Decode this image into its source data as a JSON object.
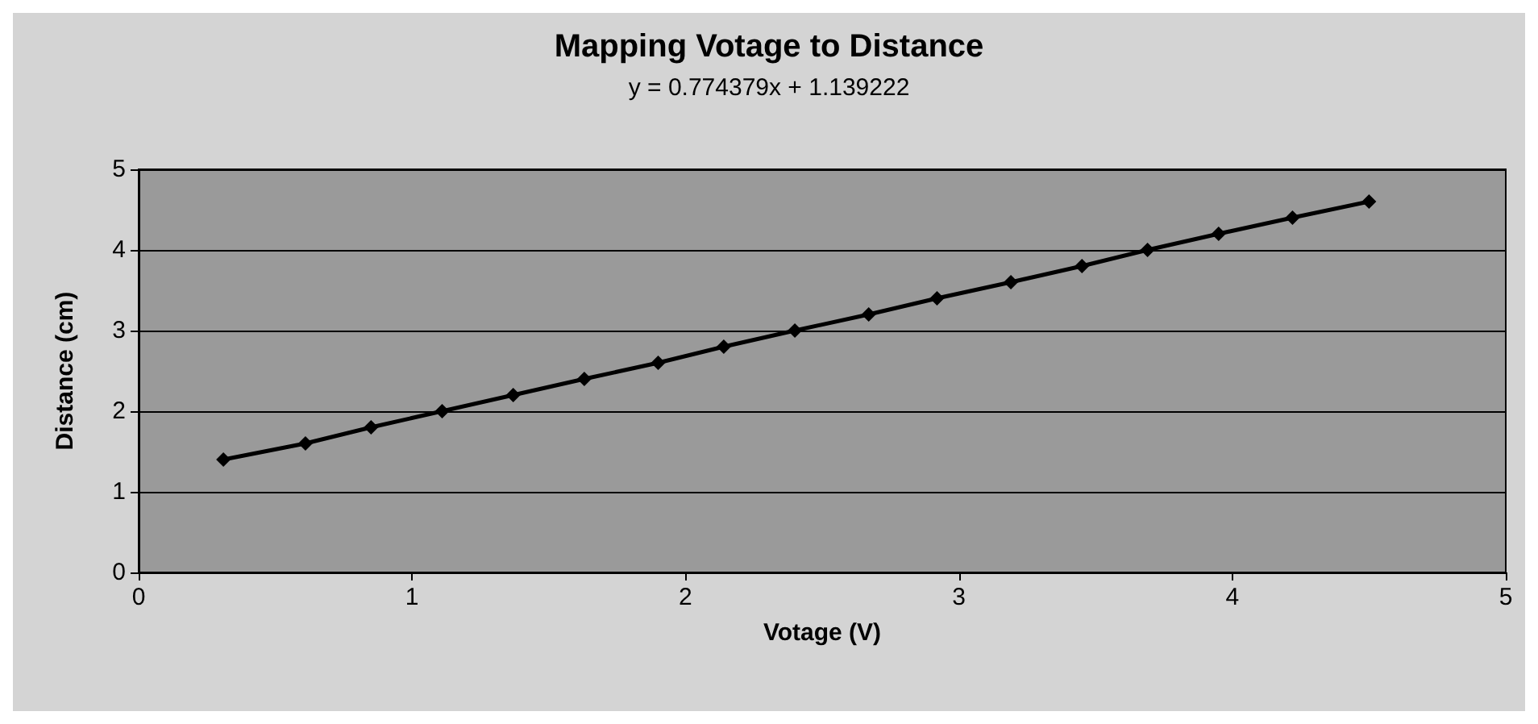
{
  "chart_data": {
    "type": "line",
    "title": "Mapping Votage to Distance",
    "subtitle": "y = 0.774379x + 1.139222",
    "xlabel": "Votage (V)",
    "ylabel": "Distance (cm)",
    "x": [
      0.31,
      0.61,
      0.85,
      1.11,
      1.37,
      1.63,
      1.9,
      2.14,
      2.4,
      2.67,
      2.92,
      3.19,
      3.45,
      3.69,
      3.95,
      4.22,
      4.5
    ],
    "series": [
      {
        "color": "#000000",
        "values": [
          1.4,
          1.6,
          1.8,
          2.0,
          2.2,
          2.4,
          2.6,
          2.8,
          3.0,
          3.2,
          3.4,
          3.6,
          3.8,
          4.0,
          4.2,
          4.4,
          4.6
        ]
      }
    ],
    "xlim": [
      0,
      5
    ],
    "xticks": [
      0,
      1,
      2,
      3,
      4,
      5
    ],
    "ylim": [
      0,
      5
    ],
    "yticks": [
      0,
      1,
      2,
      3,
      4,
      5
    ],
    "grid": "y",
    "marker": "diamond",
    "line_style": "solid"
  }
}
